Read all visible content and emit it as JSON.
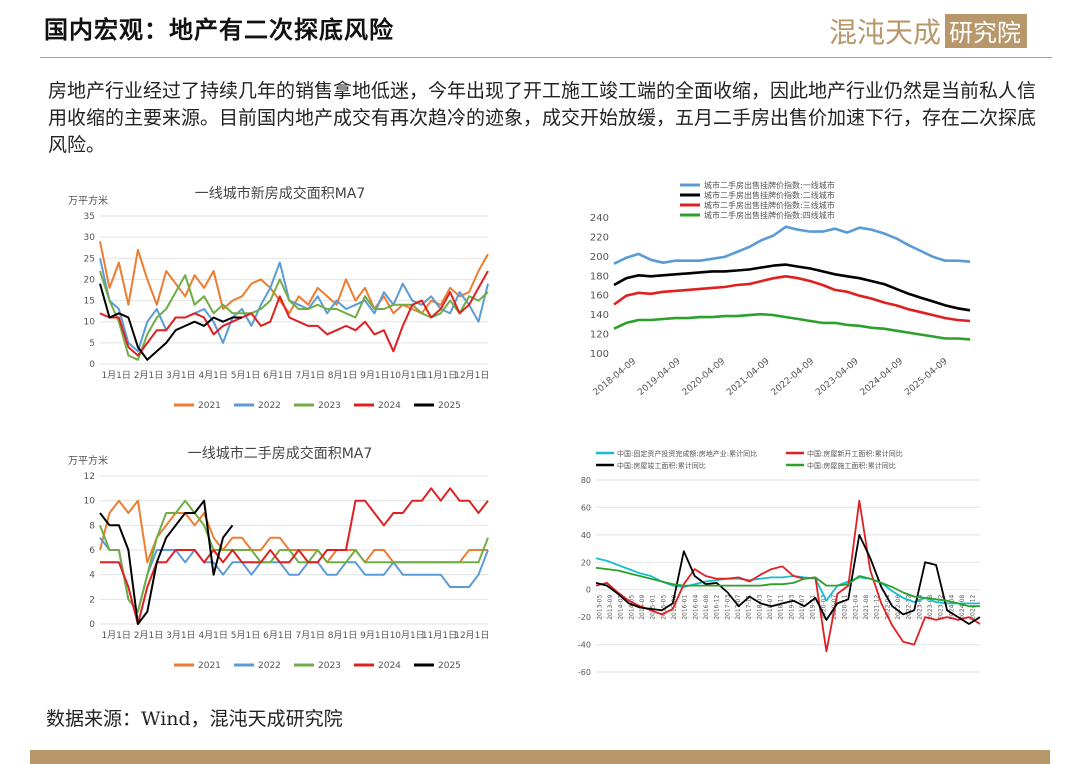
{
  "page": {
    "title": "国内宏观：地产有二次探底风险",
    "logo_text": "混沌天成研究院",
    "paragraph": "房地产行业经过了持续几年的销售拿地低迷，今年出现了开工施工竣工端的全面收缩，因此地产行业仍然是当前私人信用收缩的主要来源。目前国内地产成交有再次趋冷的迹象，成交开始放缓，五月二手房出售价加速下行，存在二次探底风险。",
    "source": "数据来源：Wind，混沌天成研究院",
    "colors": {
      "accent": "#b8976a"
    }
  },
  "chart_data": [
    {
      "type": "line",
      "title": "一线城市新房成交面积MA7",
      "ylabel": "万平方米",
      "ylim": [
        0,
        35
      ],
      "yticks": [
        0,
        5,
        10,
        15,
        20,
        25,
        30,
        35
      ],
      "x_ticks": [
        "1月1日",
        "2月1日",
        "3月1日",
        "4月1日",
        "5月1日",
        "6月1日",
        "7月1日",
        "8月1日",
        "9月1日",
        "10月1日",
        "11月1日",
        "12月1日"
      ],
      "grid": true,
      "legend_position": "bottom",
      "series": [
        {
          "name": "2021",
          "color": "#ed7d31",
          "values": [
            29,
            18,
            24,
            14,
            27,
            20,
            14,
            22,
            19,
            16,
            21,
            18,
            22,
            13,
            15,
            16,
            19,
            20,
            18,
            15,
            12,
            16,
            14,
            18,
            16,
            14,
            20,
            15,
            18,
            13,
            16,
            12,
            14,
            13,
            12,
            15,
            14,
            18,
            16,
            17,
            22,
            26
          ]
        },
        {
          "name": "2022",
          "color": "#5b9bd5",
          "values": [
            25,
            15,
            13,
            5,
            3,
            10,
            13,
            8,
            11,
            11,
            12,
            13,
            10,
            5,
            11,
            13,
            9,
            14,
            18,
            24,
            15,
            14,
            13,
            16,
            12,
            15,
            13,
            14,
            15,
            12,
            17,
            14,
            19,
            15,
            14,
            16,
            13,
            12,
            17,
            14,
            10,
            19
          ]
        },
        {
          "name": "2023",
          "color": "#70ad47",
          "values": [
            22,
            15,
            10,
            2,
            1,
            7,
            11,
            13,
            17,
            21,
            14,
            16,
            12,
            14,
            12,
            12,
            12,
            13,
            15,
            20,
            15,
            13,
            13,
            14,
            13,
            13,
            12,
            11,
            16,
            13,
            13,
            14,
            14,
            14,
            12,
            11,
            12,
            15,
            12,
            16,
            15,
            17
          ]
        },
        {
          "name": "2024",
          "color": "#e02020",
          "values": [
            12,
            11,
            11,
            4,
            2,
            5,
            8,
            8,
            11,
            11,
            12,
            11,
            7,
            9,
            10,
            11,
            12,
            9,
            10,
            16,
            11,
            10,
            9,
            9,
            7,
            8,
            9,
            8,
            10,
            7,
            8,
            3,
            9,
            14,
            15,
            11,
            13,
            17,
            12,
            14,
            18,
            22
          ]
        },
        {
          "name": "2025",
          "color": "#000000",
          "values": [
            19,
            11,
            12,
            11,
            4,
            1,
            3,
            5,
            8,
            9,
            10,
            9,
            11,
            10,
            11,
            11,
            null,
            null,
            null,
            null,
            null,
            null,
            null,
            null,
            null,
            null,
            null,
            null,
            null,
            null,
            null,
            null,
            null,
            null,
            null,
            null,
            null,
            null,
            null,
            null,
            null,
            null
          ]
        }
      ]
    },
    {
      "type": "line",
      "title": "",
      "ylim": [
        100,
        240
      ],
      "yticks": [
        100,
        120,
        140,
        160,
        180,
        200,
        220,
        240
      ],
      "x_ticks": [
        "2018-04-09",
        "2019-04-09",
        "2020-04-09",
        "2021-04-09",
        "2022-04-09",
        "2023-04-09",
        "2024-04-09",
        "2025-04-09"
      ],
      "legend_position": "top",
      "series": [
        {
          "name": "城市二手房出售挂牌价指数:一线城市",
          "color": "#5b9bd5",
          "values": [
            193,
            199,
            203,
            197,
            194,
            196,
            196,
            196,
            198,
            200,
            205,
            210,
            217,
            222,
            231,
            228,
            226,
            226,
            229,
            225,
            230,
            228,
            224,
            219,
            212,
            206,
            200,
            196,
            196,
            195
          ]
        },
        {
          "name": "城市二手房出售挂牌价指数:二线城市",
          "color": "#000000",
          "values": [
            171,
            178,
            181,
            180,
            181,
            182,
            183,
            184,
            185,
            185,
            186,
            187,
            189,
            191,
            192,
            190,
            188,
            185,
            182,
            180,
            178,
            175,
            172,
            167,
            162,
            158,
            154,
            150,
            147,
            145
          ]
        },
        {
          "name": "城市二手房出售挂牌价指数:三线城市",
          "color": "#e02020",
          "values": [
            151,
            160,
            163,
            162,
            164,
            165,
            166,
            167,
            168,
            169,
            171,
            172,
            175,
            178,
            180,
            178,
            175,
            171,
            166,
            164,
            160,
            157,
            153,
            150,
            146,
            143,
            140,
            137,
            135,
            134
          ]
        },
        {
          "name": "城市二手房出售挂牌价指数:四线城市",
          "color": "#2ca02c",
          "values": [
            126,
            132,
            135,
            135,
            136,
            137,
            137,
            138,
            138,
            139,
            139,
            140,
            141,
            140,
            138,
            136,
            134,
            132,
            132,
            130,
            129,
            127,
            126,
            124,
            122,
            120,
            118,
            116,
            116,
            115
          ]
        }
      ]
    },
    {
      "type": "line",
      "title": "一线城市二手房成交面积MA7",
      "ylabel": "万平方米",
      "ylim": [
        0,
        12
      ],
      "yticks": [
        0,
        2,
        4,
        6,
        8,
        10,
        12
      ],
      "x_ticks": [
        "1月1日",
        "2月1日",
        "3月1日",
        "4月1日",
        "5月1日",
        "6月1日",
        "7月1日",
        "8月1日",
        "9月1日",
        "10月1日",
        "11月1日",
        "12月1日"
      ],
      "grid": true,
      "legend_position": "bottom",
      "series": [
        {
          "name": "2021",
          "color": "#ed7d31",
          "values": [
            6,
            9,
            10,
            9,
            10,
            5,
            7,
            8,
            9,
            9,
            8,
            9,
            7,
            6,
            7,
            7,
            6,
            6,
            7,
            7,
            6,
            6,
            6,
            6,
            5,
            6,
            6,
            6,
            5,
            6,
            6,
            5,
            5,
            5,
            5,
            5,
            5,
            5,
            5,
            6,
            6,
            6
          ]
        },
        {
          "name": "2022",
          "color": "#5b9bd5",
          "values": [
            7,
            6,
            6,
            2,
            1,
            4,
            6,
            6,
            6,
            5,
            6,
            5,
            5,
            4,
            5,
            5,
            4,
            5,
            5,
            5,
            4,
            4,
            5,
            5,
            4,
            4,
            5,
            5,
            4,
            4,
            4,
            5,
            4,
            4,
            4,
            4,
            4,
            3,
            3,
            3,
            4,
            6
          ]
        },
        {
          "name": "2023",
          "color": "#70ad47",
          "values": [
            8,
            6,
            6,
            2,
            1,
            4,
            7,
            9,
            9,
            10,
            9,
            8,
            6,
            6,
            6,
            6,
            6,
            5,
            5,
            6,
            6,
            5,
            5,
            6,
            5,
            5,
            5,
            6,
            5,
            5,
            5,
            5,
            5,
            5,
            5,
            5,
            5,
            5,
            5,
            5,
            5,
            7
          ]
        },
        {
          "name": "2024",
          "color": "#e02020",
          "values": [
            5,
            5,
            5,
            3,
            0,
            3,
            5,
            5,
            6,
            6,
            6,
            5,
            6,
            5,
            6,
            5,
            5,
            5,
            6,
            5,
            5,
            6,
            5,
            5,
            6,
            6,
            6,
            10,
            10,
            9,
            8,
            9,
            9,
            10,
            10,
            11,
            10,
            11,
            10,
            10,
            9,
            10
          ]
        },
        {
          "name": "2025",
          "color": "#000000",
          "values": [
            9,
            8,
            8,
            6,
            0,
            1,
            5,
            7,
            8,
            9,
            9,
            10,
            4,
            7,
            8,
            null,
            null,
            null,
            null,
            null,
            null,
            null,
            null,
            null,
            null,
            null,
            null,
            null,
            null,
            null,
            null,
            null,
            null,
            null,
            null,
            null,
            null,
            null,
            null,
            null,
            null,
            null
          ]
        }
      ]
    },
    {
      "type": "line",
      "title": "",
      "ylim": [
        -60,
        80
      ],
      "yticks": [
        -60,
        -40,
        -20,
        0,
        20,
        40,
        60,
        80
      ],
      "grid": true,
      "legend_position": "top",
      "x_ticks": [
        "2013-05",
        "2013-09",
        "2014-01",
        "2014-05",
        "2014-09",
        "2015-01",
        "2015-05",
        "2015-09",
        "2016-01",
        "2016-04",
        "2016-08",
        "2016-12",
        "2017-03",
        "2017-07",
        "2017-11",
        "2018-03",
        "2018-07",
        "2018-11",
        "2019-03",
        "2019-07",
        "2019-11",
        "2020-03",
        "2020-07",
        "2020-11",
        "2021-04",
        "2021-08",
        "2021-12",
        "2022-04",
        "2022-08",
        "2022-12",
        "2023-04",
        "2023-08",
        "2023-12",
        "2024-04",
        "2024-08",
        "2024-12"
      ],
      "series": [
        {
          "name": "中国:固定资产投资完成额:房地产业:累计同比",
          "color": "#17becf",
          "values": [
            23,
            21,
            18,
            15,
            12,
            10,
            6,
            3,
            2,
            4,
            6,
            7,
            8,
            8,
            7,
            8,
            9,
            9,
            10,
            9,
            8,
            -8,
            3,
            6,
            9,
            8,
            5,
            -1,
            -6,
            -9,
            -6,
            -9,
            -10,
            -10,
            -10,
            -10
          ]
        },
        {
          "name": "中国:房屋新开工面积:累计同比",
          "color": "#e02020",
          "values": [
            3,
            5,
            -2,
            -8,
            -12,
            -15,
            -18,
            -14,
            4,
            15,
            10,
            8,
            8,
            9,
            6,
            11,
            15,
            17,
            10,
            8,
            9,
            -45,
            -3,
            3,
            65,
            14,
            -10,
            -26,
            -38,
            -40,
            -20,
            -22,
            -20,
            -22,
            -20,
            -25
          ]
        },
        {
          "name": "中国:房屋竣工面积:累计同比",
          "color": "#000000",
          "values": [
            5,
            3,
            -3,
            -10,
            -13,
            -14,
            -15,
            -10,
            28,
            10,
            4,
            5,
            -2,
            -12,
            -5,
            -10,
            -12,
            -10,
            -8,
            -12,
            -6,
            -22,
            -10,
            -7,
            40,
            23,
            2,
            -12,
            -18,
            -15,
            20,
            18,
            -15,
            -20,
            -25,
            -20
          ]
        },
        {
          "name": "中国:房屋施工面积:累计同比",
          "color": "#2ca02c",
          "values": [
            16,
            15,
            14,
            12,
            10,
            8,
            6,
            4,
            3,
            3,
            3,
            3,
            3,
            3,
            3,
            3,
            4,
            4,
            5,
            8,
            9,
            3,
            3,
            4,
            10,
            8,
            5,
            2,
            -2,
            -5,
            -6,
            -7,
            -8,
            -10,
            -12,
            -12
          ]
        }
      ]
    }
  ]
}
